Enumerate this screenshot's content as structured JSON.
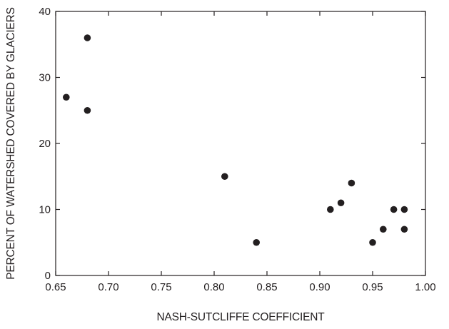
{
  "chart_data": {
    "type": "scatter",
    "title": "",
    "xlabel": "NASH-SUTCLIFFE COEFFICIENT",
    "ylabel": "PERCENT OF WATERSHED COVERED BY GLACIERS",
    "xlim": [
      0.65,
      1.0
    ],
    "ylim": [
      0,
      40
    ],
    "xticks": [
      0.65,
      0.7,
      0.75,
      0.8,
      0.85,
      0.9,
      0.95,
      1.0
    ],
    "xtick_labels": [
      "0.65",
      "0.70",
      "0.75",
      "0.80",
      "0.85",
      "0.90",
      "0.95",
      "1.00"
    ],
    "yticks": [
      0,
      10,
      20,
      30,
      40
    ],
    "ytick_labels": [
      "0",
      "10",
      "20",
      "30",
      "40"
    ],
    "grid": false,
    "legend": "none",
    "marker_color": "#231f20",
    "points": [
      {
        "x": 0.66,
        "y": 27
      },
      {
        "x": 0.68,
        "y": 36
      },
      {
        "x": 0.68,
        "y": 25
      },
      {
        "x": 0.81,
        "y": 15
      },
      {
        "x": 0.84,
        "y": 5
      },
      {
        "x": 0.91,
        "y": 10
      },
      {
        "x": 0.92,
        "y": 11
      },
      {
        "x": 0.93,
        "y": 14
      },
      {
        "x": 0.95,
        "y": 5
      },
      {
        "x": 0.96,
        "y": 7
      },
      {
        "x": 0.97,
        "y": 10
      },
      {
        "x": 0.98,
        "y": 10
      },
      {
        "x": 0.98,
        "y": 7
      }
    ]
  }
}
